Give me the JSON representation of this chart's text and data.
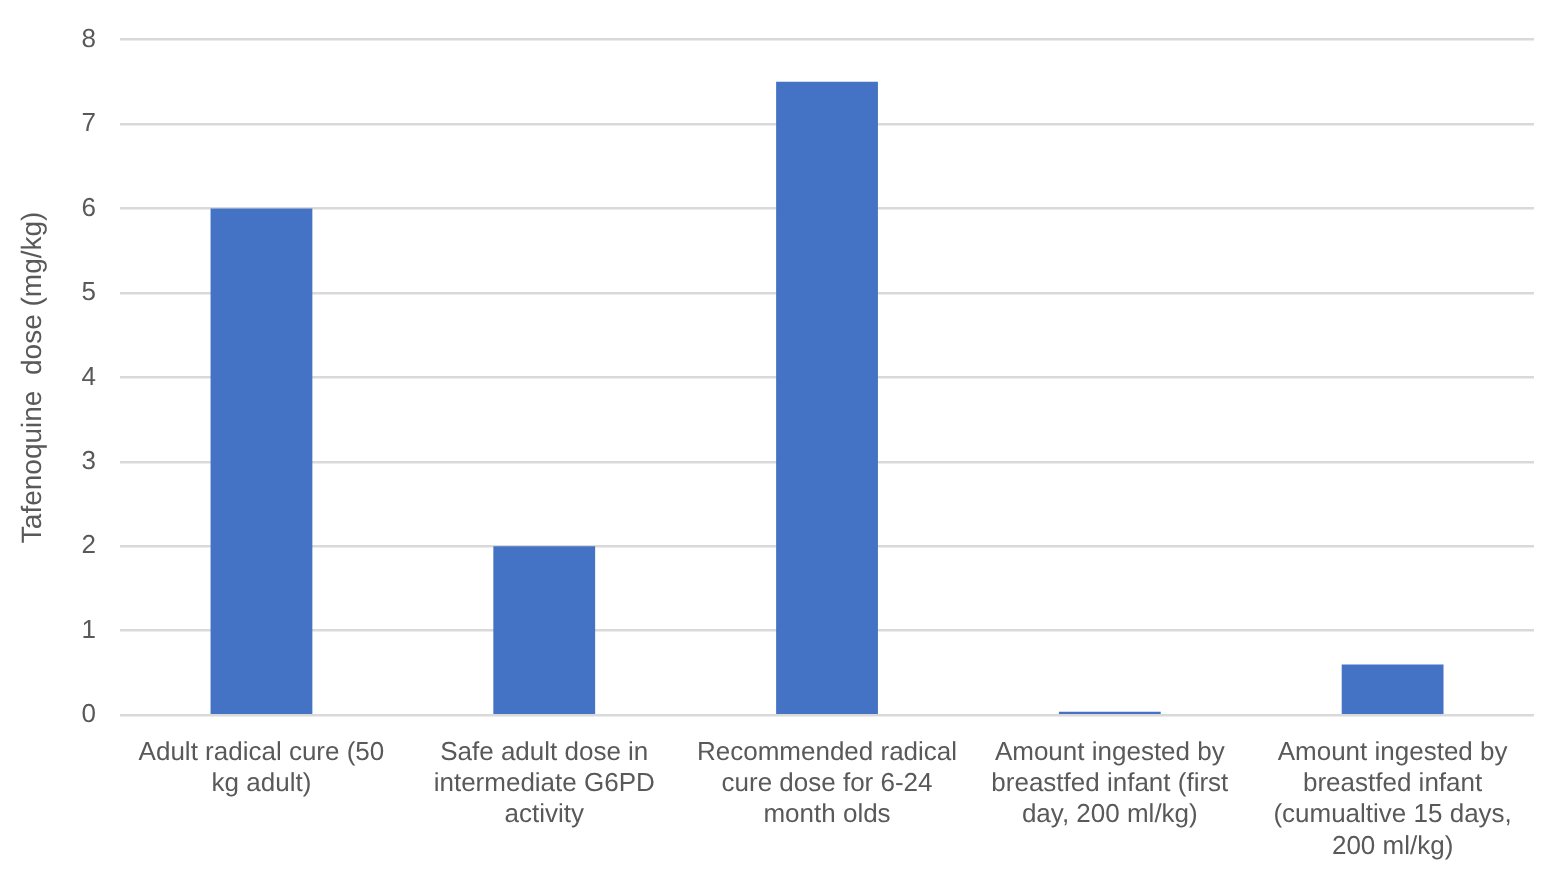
{
  "chart_data": {
    "type": "bar",
    "ylabel": "Tafenoquine  dose (mg/kg)",
    "categories": [
      "Adult radical cure (50 kg adult)",
      "Safe adult dose in intermediate G6PD activity",
      "Recommended radical cure dose for 6-24 month olds",
      "Amount ingested by breastfed infant (first day, 200 ml/kg)",
      "Amount ingested by breastfed infant (cumualtive 15 days, 200 ml/kg)"
    ],
    "values": [
      6,
      2,
      7.5,
      0.04,
      0.6
    ],
    "color": "#4472c4",
    "ylim": [
      0,
      8
    ],
    "yticks": [
      0,
      1,
      2,
      3,
      4,
      5,
      6,
      7,
      8
    ],
    "grid": "y",
    "legend": false
  }
}
